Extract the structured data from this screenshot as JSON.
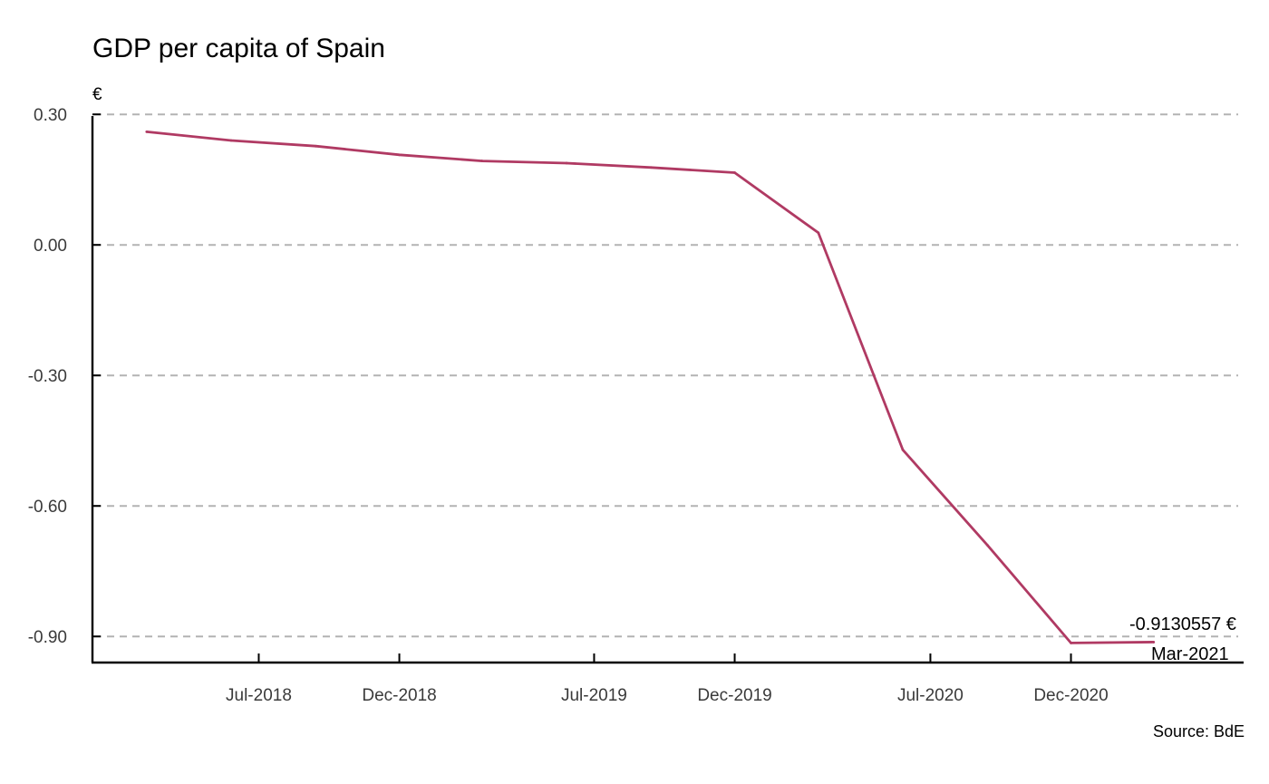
{
  "chart_data": {
    "type": "line",
    "title": "GDP per capita of Spain",
    "ylabel": "€",
    "xlabel": "",
    "source": "Source: BdE",
    "color": "#b03a63",
    "grid": true,
    "ylim": [
      -0.96,
      0.315
    ],
    "xlim": [
      "2018-01-01",
      "2021-06-01"
    ],
    "yticks": [
      0.3,
      0.0,
      -0.3,
      -0.6,
      -0.9
    ],
    "ytick_labels": [
      "0.30",
      "0.00",
      "-0.30",
      "-0.60",
      "-0.90"
    ],
    "xticks": [
      "2018-07-01",
      "2018-12-01",
      "2019-07-01",
      "2019-12-01",
      "2020-07-01",
      "2020-12-01"
    ],
    "xtick_labels": [
      "Jul-2018",
      "Dec-2018",
      "Jul-2019",
      "Dec-2019",
      "Jul-2020",
      "Dec-2020"
    ],
    "series": [
      {
        "x": [
          "2018-03-01",
          "2018-06-01",
          "2018-09-01",
          "2018-12-01",
          "2019-03-01",
          "2019-06-01",
          "2019-09-01",
          "2019-12-01",
          "2020-03-01",
          "2020-06-01",
          "2020-09-01",
          "2020-12-01",
          "2021-03-01"
        ],
        "values": [
          0.26,
          0.24,
          0.227,
          0.207,
          0.193,
          0.188,
          0.178,
          0.166,
          0.028,
          -0.471,
          -0.69,
          -0.915,
          -0.913
        ]
      }
    ],
    "annotation": {
      "value_label": "-0.9130557 €",
      "date_label": "Mar-2021"
    }
  }
}
